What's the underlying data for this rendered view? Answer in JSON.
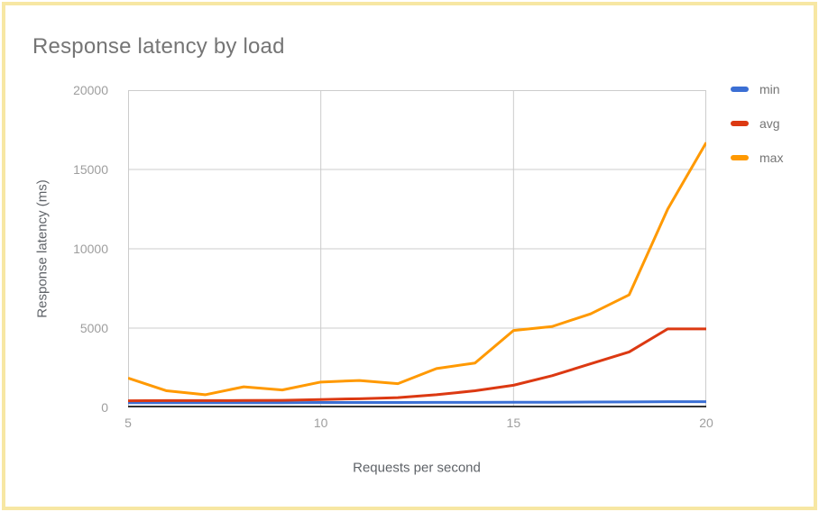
{
  "frame": {
    "border_color": "#f7e7a3"
  },
  "chart_data": {
    "type": "line",
    "title": "Response latency by load",
    "xlabel": "Requests per second",
    "ylabel": "Response latency (ms)",
    "x": [
      5,
      6,
      7,
      8,
      9,
      10,
      11,
      12,
      13,
      14,
      15,
      16,
      17,
      18,
      19,
      20
    ],
    "xlim": [
      5,
      20
    ],
    "ylim": [
      0,
      20000
    ],
    "x_ticks": [
      5,
      10,
      15,
      20
    ],
    "y_ticks": [
      0,
      5000,
      10000,
      15000,
      20000
    ],
    "grid": true,
    "legend_position": "right",
    "series": [
      {
        "name": "min",
        "color": "#3b6fd4",
        "values": [
          300,
          300,
          300,
          300,
          300,
          310,
          310,
          310,
          320,
          320,
          330,
          330,
          340,
          350,
          360,
          360
        ]
      },
      {
        "name": "avg",
        "color": "#dc3912",
        "values": [
          420,
          430,
          430,
          440,
          450,
          500,
          550,
          620,
          800,
          1050,
          1400,
          2000,
          2750,
          3500,
          4950,
          4950
        ]
      },
      {
        "name": "max",
        "color": "#ff9900",
        "values": [
          1850,
          1050,
          800,
          1300,
          1100,
          1600,
          1700,
          1500,
          2450,
          2800,
          4850,
          5100,
          5900,
          7100,
          12500,
          16700
        ]
      }
    ],
    "style": {
      "grid_color": "#cccccc",
      "axis_line_color": "#333333",
      "tick_label_color": "#9e9e9e",
      "title_color": "#757575",
      "axis_title_color": "#5f6368",
      "line_width": 3
    }
  }
}
